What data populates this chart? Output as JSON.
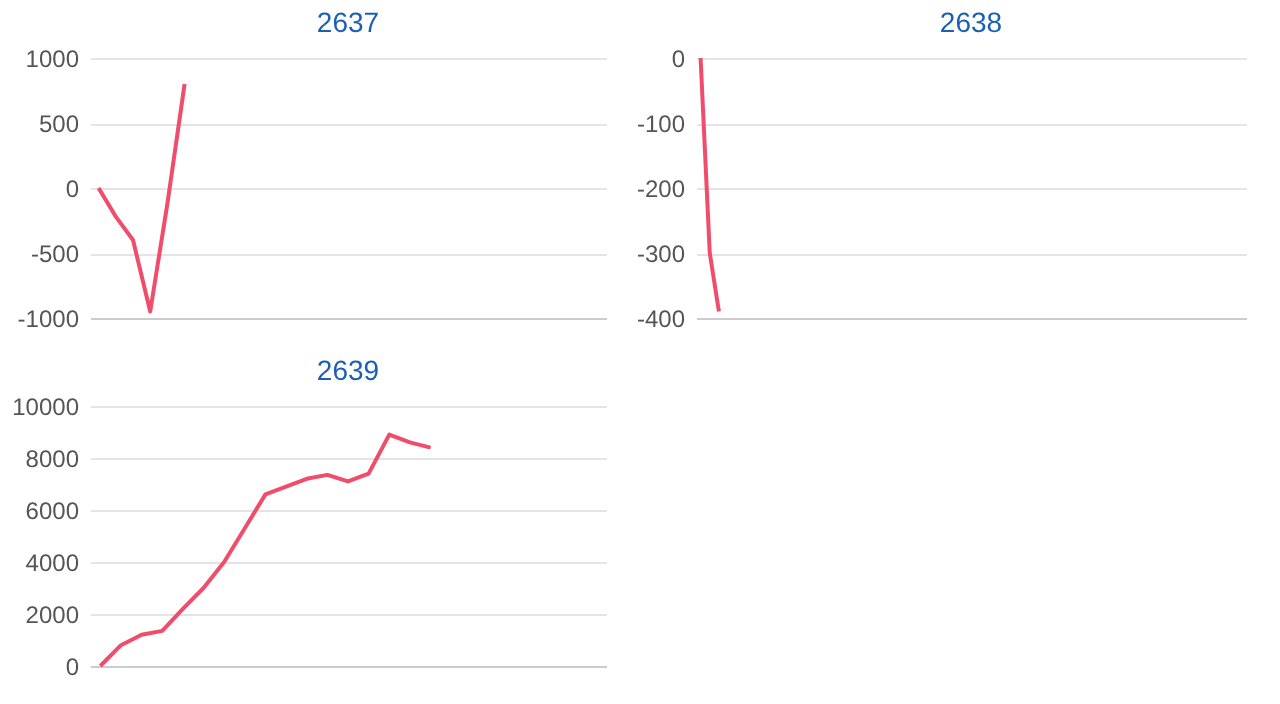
{
  "chart_data": [
    {
      "type": "line",
      "title": "2637",
      "color": "#ef4d6b",
      "ylim": [
        -1000,
        1000
      ],
      "yticks": [
        -1000,
        -500,
        0,
        500,
        1000
      ],
      "grid": "y",
      "tick_labels": "y",
      "categories": [
        null,
        null,
        null,
        null,
        null,
        null,
        null,
        null,
        null,
        null,
        null,
        null,
        null,
        null,
        null,
        null,
        null,
        null,
        null,
        null,
        null,
        null,
        null,
        null,
        null,
        null,
        null,
        null,
        null,
        null
      ],
      "values": [
        0,
        -220,
        -400,
        -950,
        -120,
        800,
        null,
        null,
        null,
        null,
        null,
        null,
        null,
        null,
        null,
        null,
        null,
        null,
        null,
        null,
        null,
        null,
        null,
        null,
        null,
        null,
        null,
        null,
        null,
        null
      ]
    },
    {
      "type": "line",
      "title": "2638",
      "color": "#ef4d6b",
      "ylim": [
        -400,
        0
      ],
      "yticks": [
        -400,
        -300,
        -200,
        -100,
        0
      ],
      "grid": "y",
      "tick_labels": "y",
      "categories": [
        null,
        null,
        null,
        null,
        null,
        null,
        null,
        null,
        null,
        null,
        null,
        null,
        null,
        null,
        null,
        null,
        null,
        null,
        null,
        null,
        null,
        null,
        null,
        null,
        null,
        null,
        null,
        null,
        null,
        null,
        null,
        null,
        null,
        null,
        null,
        null,
        null,
        null,
        null,
        null,
        null,
        null,
        null,
        null,
        null,
        null,
        null,
        null,
        null,
        null,
        null,
        null,
        null,
        null,
        null,
        null,
        null,
        null,
        null,
        null
      ],
      "values": [
        0,
        -300,
        -390,
        null,
        null,
        null,
        null,
        null,
        null,
        null,
        null,
        null,
        null,
        null,
        null,
        null,
        null,
        null,
        null,
        null,
        null,
        null,
        null,
        null,
        null,
        null,
        null,
        null,
        null,
        null,
        null,
        null,
        null,
        null,
        null,
        null,
        null,
        null,
        null,
        null,
        null,
        null,
        null,
        null,
        null,
        null,
        null,
        null,
        null,
        null,
        null,
        null,
        null,
        null,
        null,
        null,
        null,
        null,
        null,
        null
      ]
    },
    {
      "type": "line",
      "title": "2639",
      "color": "#ef4d6b",
      "ylim": [
        0,
        10000
      ],
      "yticks": [
        0,
        2000,
        4000,
        6000,
        8000,
        10000
      ],
      "grid": "y",
      "tick_labels": "y",
      "categories": [
        null,
        null,
        null,
        null,
        null,
        null,
        null,
        null,
        null,
        null,
        null,
        null,
        null,
        null,
        null,
        null,
        null,
        null,
        null,
        null,
        null,
        null,
        null,
        null,
        null
      ],
      "values": [
        0,
        800,
        1200,
        1350,
        2200,
        3000,
        4000,
        5300,
        6600,
        6900,
        7200,
        7350,
        7100,
        7400,
        8900,
        8600,
        8400,
        null,
        null,
        null,
        null,
        null,
        null,
        null,
        null
      ]
    }
  ]
}
